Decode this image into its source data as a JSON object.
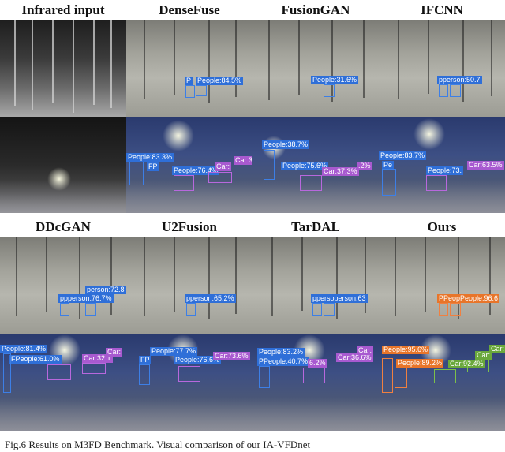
{
  "columns_top": [
    "Infrared input",
    "DenseFuse",
    "FusionGAN",
    "IFCNN"
  ],
  "columns_bottom": [
    "DDcGAN",
    "U2Fusion",
    "TarDAL",
    "Ours"
  ],
  "tiles": {
    "densefuse_forest": [
      "People:84.5%",
      "P"
    ],
    "fusiongan_forest": [
      "People:31.6%"
    ],
    "ifcnn_forest": [
      "pperson:50.7"
    ],
    "densefuse_street": [
      "People:83.3%",
      "People:76.4%",
      "Car:3",
      "Car:",
      "FP"
    ],
    "fusiongan_street": [
      "People:38.7%",
      "People:75.6%",
      "Car:37.3%",
      ".2%"
    ],
    "ifcnn_street": [
      "People:83.7%",
      "People:73.",
      "Car:63.5%",
      "Pe"
    ],
    "ddcgan_forest": [
      "person:72.8",
      "ppperson:76.7%"
    ],
    "u2fusion_forest": [
      "pperson:65.2%"
    ],
    "tardal_forest": [
      "ppersoperson:63"
    ],
    "ours_forest": [
      "PPeopPeople:96.6"
    ],
    "ddcgan_street": [
      "People:81.4%",
      "FPeople:61.0%",
      "Car:32.1",
      "Car:"
    ],
    "u2fusion_street": [
      "People:77.7%",
      "People:76.6%",
      "Car:73.6%",
      "FP"
    ],
    "tardal_street": [
      "People:83.2%",
      "PPeople:40.7%",
      "Car:36.6%",
      "6.2%",
      "Car:"
    ],
    "ours_street": [
      "People:95.6%",
      "People:89.2%",
      "Car:92.4%",
      "Car:",
      "Car:"
    ]
  },
  "caption": "Fig.6 Results on M3FD Benchmark. Visual comparison of our IA-VFDnet",
  "colors": {
    "people": "#2f6fd8",
    "car": "#a85ad0",
    "ours_people": "#e8752a",
    "ours_car": "#6aa83c"
  }
}
